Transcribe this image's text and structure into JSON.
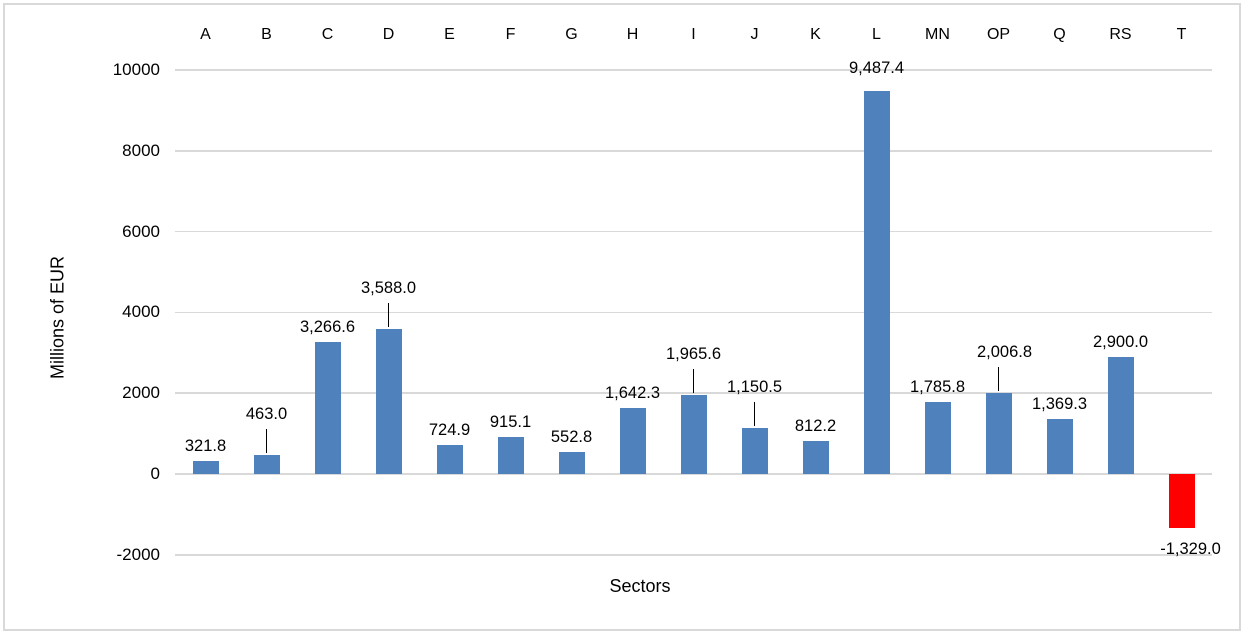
{
  "chart_data": {
    "type": "bar",
    "title": "",
    "xlabel": "Sectors",
    "ylabel": "Millions of EUR",
    "categories": [
      "A",
      "B",
      "C",
      "D",
      "E",
      "F",
      "G",
      "H",
      "I",
      "J",
      "K",
      "L",
      "MN",
      "OP",
      "Q",
      "RS",
      "T"
    ],
    "values": [
      321.8,
      463.0,
      3266.6,
      3588.0,
      724.9,
      915.1,
      552.8,
      1642.3,
      1965.6,
      1150.5,
      812.2,
      9487.4,
      1785.8,
      2006.8,
      1369.3,
      2900.0,
      -1329.0
    ],
    "data_labels": [
      "321.8",
      "463.0",
      "3,266.6",
      "3,588.0",
      "724.9",
      "915.1",
      "552.8",
      "1,642.3",
      "1,965.6",
      "1,150.5",
      "812.2",
      "9,487.4",
      "1,785.8",
      "2,006.8",
      "1,369.3",
      "2,900.0",
      "-1,329.0"
    ],
    "ylim": [
      -2000,
      10000
    ],
    "ytick_step": 2000,
    "ytick_values": [
      10000,
      8000,
      6000,
      4000,
      2000,
      0,
      -2000
    ],
    "ytick_labels": [
      "10000",
      "8000",
      "6000",
      "4000",
      "2000",
      "0",
      "-2000"
    ],
    "grid": "horizontal",
    "legend": "none",
    "category_axis_position": "top",
    "labels_with_leader_lines": [
      "B",
      "D",
      "I",
      "J",
      "OP"
    ],
    "colors": {
      "bar": "#4F81BD",
      "negative_bar": "#FF0000",
      "gridline": "#D9D9D9",
      "text": "#000000",
      "frame_border": "#D9D9D9"
    }
  }
}
